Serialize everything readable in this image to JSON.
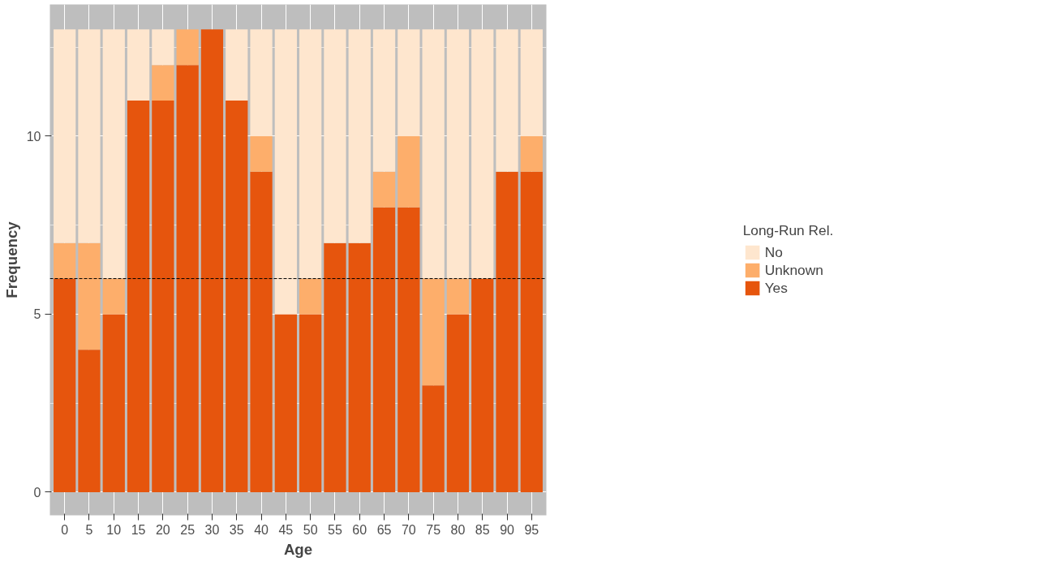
{
  "chart_data": {
    "type": "bar",
    "stacked": true,
    "xlabel": "Age",
    "ylabel": "Frequency",
    "legend_title": "Long-Run Rel.",
    "categories": [
      "0",
      "5",
      "10",
      "15",
      "20",
      "25",
      "30",
      "35",
      "40",
      "45",
      "50",
      "55",
      "60",
      "65",
      "70",
      "75",
      "80",
      "85",
      "90",
      "95"
    ],
    "series": [
      {
        "name": "Yes",
        "color": "#e6550d",
        "values": [
          6,
          4,
          5,
          11,
          11,
          12,
          13,
          11,
          9,
          5,
          5,
          7,
          7,
          8,
          8,
          3,
          5,
          6,
          9,
          9
        ]
      },
      {
        "name": "Unknown",
        "color": "#fdae6b",
        "values": [
          1,
          3,
          1,
          0,
          1,
          1,
          0,
          0,
          1,
          0,
          1,
          0,
          0,
          1,
          2,
          3,
          1,
          0,
          0,
          1
        ]
      },
      {
        "name": "No",
        "color": "#fee6ce",
        "values": [
          6,
          6,
          7,
          2,
          1,
          0,
          0,
          2,
          3,
          8,
          7,
          6,
          6,
          4,
          3,
          7,
          7,
          7,
          4,
          3
        ]
      }
    ],
    "ylim": [
      -0.65,
      13.7
    ],
    "yticks": [
      0,
      5,
      10
    ],
    "grid": true,
    "legend": "right",
    "ref_lines": [
      {
        "axis": "y",
        "value": 6,
        "color": "#000000",
        "line_style": "dashed"
      }
    ]
  }
}
